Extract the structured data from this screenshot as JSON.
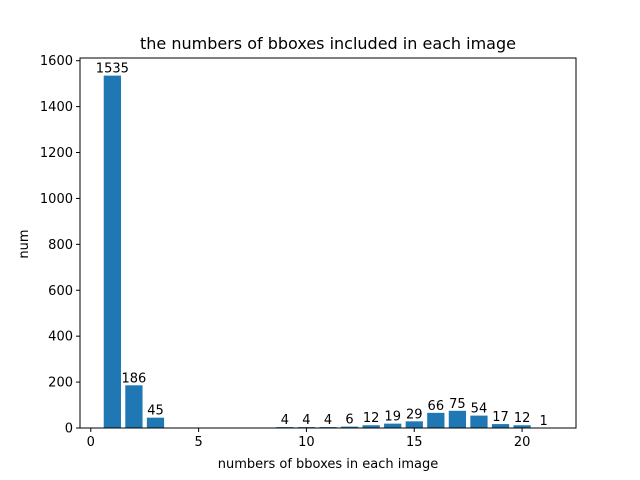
{
  "chart_data": {
    "type": "bar",
    "title": "the numbers of bboxes included in each image",
    "xlabel": "numbers of bboxes in each image",
    "ylabel": "num",
    "x": [
      1,
      2,
      3,
      9,
      10,
      11,
      12,
      13,
      14,
      15,
      16,
      17,
      18,
      19,
      20,
      21
    ],
    "values": [
      1535,
      186,
      45,
      4,
      4,
      4,
      6,
      12,
      19,
      29,
      66,
      75,
      54,
      17,
      12,
      1
    ],
    "xlim": [
      -0.5,
      22.5
    ],
    "ylim": [
      0,
      1611.75
    ],
    "xticks": [
      0,
      5,
      10,
      15,
      20
    ],
    "yticks": [
      0,
      200,
      400,
      600,
      800,
      1000,
      1200,
      1400,
      1600
    ],
    "bar_width": 0.8,
    "bar_color": "#1f77b4",
    "grid": false,
    "legend": "none"
  }
}
